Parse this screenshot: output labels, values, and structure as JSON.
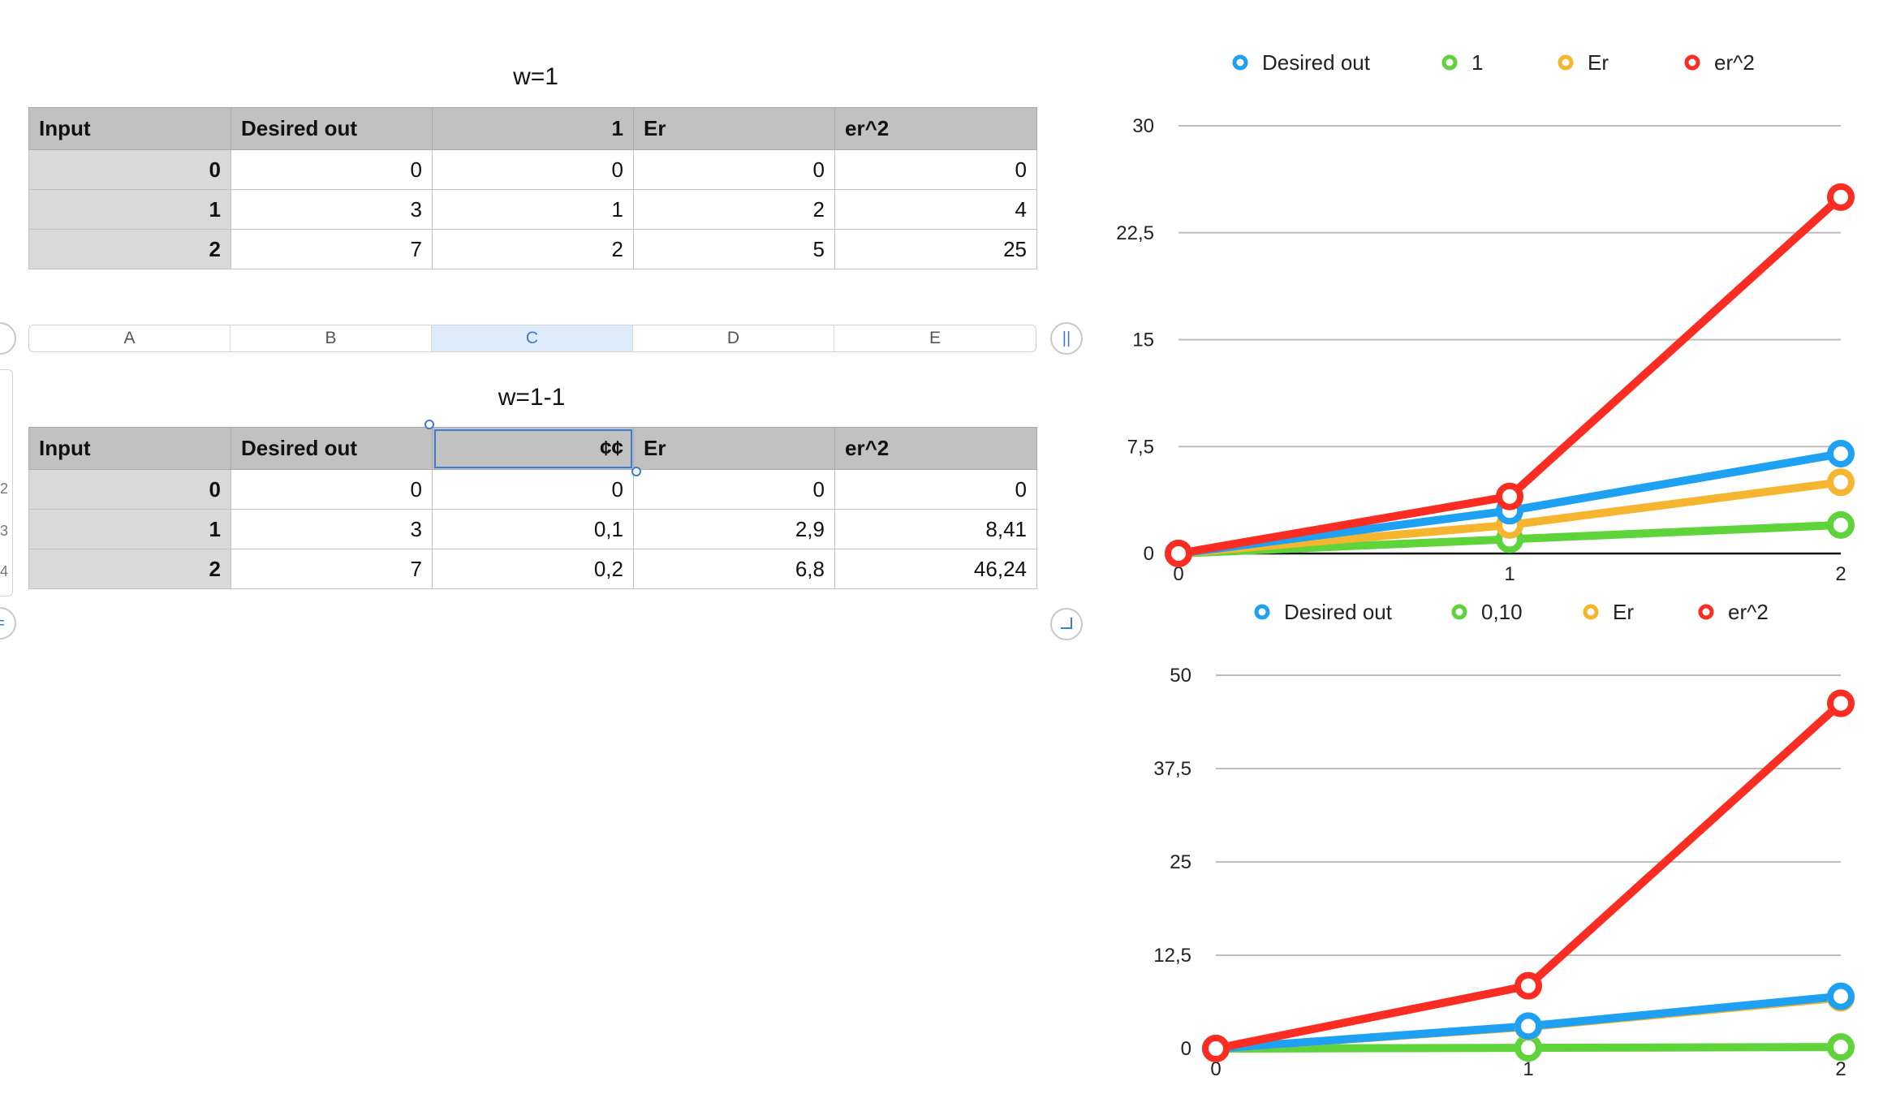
{
  "table1": {
    "title": "w=1",
    "headers": [
      "Input",
      "Desired out",
      "1",
      "Er",
      "er^2"
    ],
    "rows": [
      [
        "0",
        "0",
        "0",
        "0",
        "0"
      ],
      [
        "1",
        "3",
        "1",
        "2",
        "4"
      ],
      [
        "2",
        "7",
        "2",
        "5",
        "25"
      ]
    ]
  },
  "column_bar": {
    "columns": [
      "A",
      "B",
      "C",
      "D",
      "E"
    ],
    "selected": "C",
    "pause_icon": "||",
    "add_icon": "="
  },
  "table2": {
    "title": "w=1-1",
    "headers": [
      "Input",
      "Desired out",
      "¢¢",
      "Er",
      "er^2"
    ],
    "rows": [
      [
        "0",
        "0",
        "0",
        "0",
        "0"
      ],
      [
        "1",
        "3",
        "0,1",
        "2,9",
        "8,41"
      ],
      [
        "2",
        "7",
        "0,2",
        "6,8",
        "46,24"
      ]
    ]
  },
  "row_numbers": [
    "2",
    "3",
    "4"
  ],
  "colors": {
    "desired": "#1ea1f2",
    "w": "#5ed33a",
    "er": "#f5b52e",
    "er2": "#fb2d22"
  },
  "chart_data": [
    {
      "type": "line",
      "categories": [
        "0",
        "1",
        "2"
      ],
      "ylim": [
        0,
        30
      ],
      "yticks": [
        "0",
        "7,5",
        "15",
        "22,5",
        "30"
      ],
      "ytick_values": [
        0,
        7.5,
        15,
        22.5,
        30
      ],
      "legend_position": "top",
      "grid": true,
      "series": [
        {
          "name": "Desired out",
          "color": "#1ea1f2",
          "values": [
            0,
            3,
            7
          ]
        },
        {
          "name": "1",
          "color": "#5ed33a",
          "values": [
            0,
            1,
            2
          ]
        },
        {
          "name": "Er",
          "color": "#f5b52e",
          "values": [
            0,
            2,
            5
          ]
        },
        {
          "name": "er^2",
          "color": "#fb2d22",
          "values": [
            0,
            4,
            25
          ]
        }
      ]
    },
    {
      "type": "line",
      "categories": [
        "0",
        "1",
        "2"
      ],
      "ylim": [
        0,
        50
      ],
      "yticks": [
        "0",
        "12,5",
        "25",
        "37,5",
        "50"
      ],
      "ytick_values": [
        0,
        12.5,
        25,
        37.5,
        50
      ],
      "legend_position": "top",
      "grid": true,
      "series": [
        {
          "name": "Desired out",
          "color": "#1ea1f2",
          "values": [
            0,
            3,
            7
          ]
        },
        {
          "name": "0,10",
          "color": "#5ed33a",
          "values": [
            0,
            0.1,
            0.2
          ]
        },
        {
          "name": "Er",
          "color": "#f5b52e",
          "values": [
            0,
            2.9,
            6.8
          ]
        },
        {
          "name": "er^2",
          "color": "#fb2d22",
          "values": [
            0,
            8.41,
            46.24
          ]
        }
      ]
    }
  ]
}
